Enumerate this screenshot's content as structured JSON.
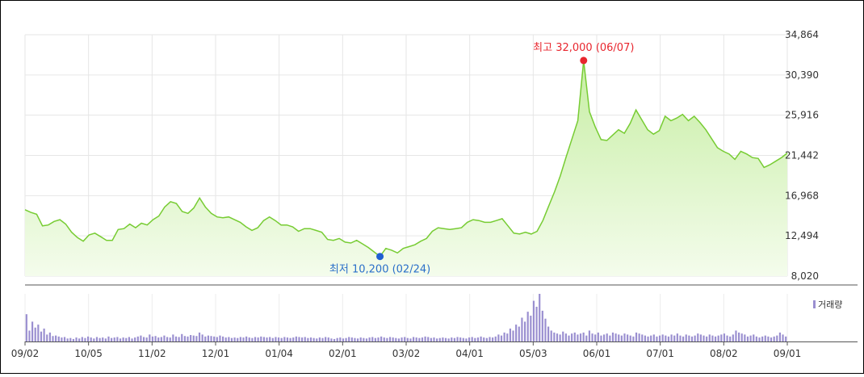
{
  "chart_data": {
    "type": "area",
    "price_chart": {
      "y_ticks": [
        8020,
        12494,
        16968,
        21442,
        25916,
        30390,
        34864
      ],
      "ylim": [
        8020,
        34864
      ],
      "x_tick_labels": [
        "09/02",
        "10/05",
        "11/02",
        "12/01",
        "01/04",
        "02/01",
        "03/02",
        "04/01",
        "05/03",
        "06/01",
        "07/01",
        "08/02",
        "09/01"
      ],
      "grid": true,
      "line_color": "#77cc33",
      "fill_color": "#dff5c8",
      "series": [
        {
          "x": [
            0,
            2,
            4,
            6,
            8,
            10,
            12,
            14,
            16,
            18,
            20,
            22,
            24,
            26,
            28,
            30,
            32,
            34,
            36,
            38,
            40,
            42,
            44,
            46,
            48,
            50,
            52,
            54,
            56,
            58,
            60,
            62,
            64,
            66,
            68,
            70,
            72,
            74,
            76,
            78,
            80,
            82,
            84,
            86,
            88,
            90,
            92,
            94,
            96,
            98,
            100,
            102,
            104,
            106,
            108,
            110,
            112,
            114,
            116,
            118,
            120,
            122,
            124,
            126,
            128,
            130,
            132,
            134,
            136,
            138,
            140,
            142,
            144,
            146,
            148,
            150,
            152,
            154,
            156,
            158,
            160,
            162,
            164,
            166,
            168,
            170,
            172,
            174,
            176,
            178,
            180,
            182,
            184,
            186,
            188,
            190,
            192,
            194,
            196,
            198,
            200,
            202,
            204,
            206,
            208,
            210,
            212,
            214,
            216,
            218,
            220,
            222,
            224,
            226,
            228,
            230,
            232,
            234,
            236,
            238,
            240,
            242,
            244,
            246,
            248,
            250,
            252,
            254,
            256,
            258,
            260,
            262
          ],
          "values": [
            15400,
            15100,
            14900,
            13600,
            13700,
            14100,
            14300,
            13800,
            12900,
            12300,
            11900,
            12600,
            12800,
            12400,
            12000,
            12000,
            13200,
            13300,
            13800,
            13400,
            13900,
            13700,
            14300,
            14700,
            15700,
            16300,
            16100,
            15200,
            15000,
            15600,
            16700,
            15700,
            15000,
            14600,
            14500,
            14600,
            14300,
            14000,
            13500,
            13100,
            13400,
            14200,
            14600,
            14200,
            13700,
            13700,
            13500,
            13000,
            13300,
            13300,
            13100,
            12900,
            12100,
            12000,
            12200,
            11800,
            11700,
            12000,
            11600,
            11200,
            10700,
            10200,
            11100,
            10900,
            10600,
            11100,
            11300,
            11500,
            11900,
            12200,
            13000,
            13400,
            13300,
            13200,
            13300,
            13400,
            14000,
            14300,
            14200,
            14000,
            14000,
            14200,
            14400,
            13600,
            12800,
            12700,
            12900,
            12700,
            13000,
            14200,
            15800,
            17400,
            19200,
            21300,
            23300,
            25300,
            32000,
            26300,
            24600,
            23200,
            23100,
            23700,
            24300,
            23900,
            25000,
            26500,
            25400,
            24300,
            23800,
            24200,
            25800,
            25300,
            25600,
            26000,
            25300,
            25800,
            25100,
            24300,
            23300,
            22300,
            21900,
            21600,
            21000,
            21900,
            21600,
            21200,
            21100,
            20100,
            20400,
            20800,
            21200,
            21700
          ]
        }
      ],
      "annotations": {
        "high": {
          "label": "최고 32,000 (06/07)",
          "value": 32000
        },
        "low": {
          "label": "최저 10,200 (02/24)",
          "value": 10200
        }
      }
    },
    "volume_chart": {
      "legend": "거래량",
      "bar_color": "#9a8fd0",
      "values": [
        55,
        22,
        40,
        28,
        34,
        20,
        26,
        14,
        18,
        11,
        12,
        10,
        8,
        9,
        6,
        7,
        5,
        8,
        6,
        9,
        7,
        10,
        8,
        6,
        9,
        7,
        8,
        6,
        10,
        7,
        8,
        9,
        6,
        8,
        7,
        9,
        6,
        8,
        10,
        12,
        9,
        8,
        14,
        10,
        11,
        8,
        9,
        12,
        9,
        8,
        14,
        10,
        9,
        15,
        11,
        10,
        13,
        12,
        11,
        18,
        14,
        10,
        12,
        11,
        10,
        9,
        12,
        10,
        8,
        9,
        7,
        8,
        7,
        9,
        8,
        10,
        8,
        7,
        9,
        8,
        10,
        9,
        8,
        9,
        7,
        9,
        8,
        7,
        9,
        8,
        7,
        8,
        10,
        9,
        8,
        9,
        7,
        8,
        7,
        6,
        8,
        7,
        9,
        8,
        6,
        5,
        7,
        8,
        6,
        7,
        9,
        8,
        7,
        6,
        8,
        7,
        6,
        8,
        9,
        7,
        8,
        10,
        8,
        7,
        9,
        8,
        7,
        6,
        8,
        9,
        7,
        6,
        9,
        8,
        7,
        8,
        10,
        9,
        7,
        8,
        6,
        7,
        8,
        7,
        6,
        8,
        7,
        9,
        8,
        7,
        6,
        8,
        9,
        7,
        8,
        10,
        8,
        7,
        9,
        8,
        10,
        14,
        12,
        18,
        16,
        26,
        22,
        34,
        30,
        48,
        40,
        60,
        52,
        82,
        70,
        96,
        62,
        46,
        30,
        22,
        18,
        16,
        14,
        20,
        16,
        12,
        16,
        18,
        14,
        16,
        18,
        12,
        22,
        16,
        14,
        18,
        12,
        14,
        16,
        12,
        18,
        16,
        14,
        12,
        16,
        14,
        12,
        10,
        18,
        16,
        14,
        12,
        10,
        12,
        14,
        10,
        12,
        14,
        12,
        10,
        14,
        12,
        16,
        12,
        10,
        14,
        12,
        10,
        12,
        16,
        14,
        12,
        10,
        14,
        12,
        10,
        12,
        14,
        16,
        12,
        10,
        14,
        22,
        18,
        16,
        14,
        10,
        12,
        14,
        10,
        8,
        10,
        12,
        10,
        8,
        10,
        12,
        18,
        14,
        10
      ]
    }
  }
}
